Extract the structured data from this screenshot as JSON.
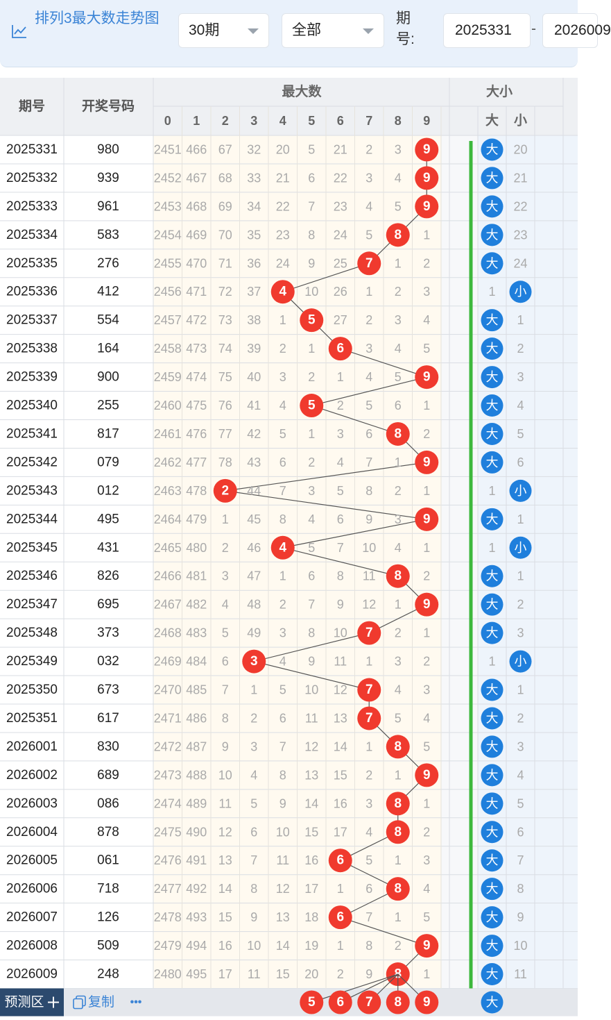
{
  "header": {
    "title": "排列3最大数走势图",
    "period_select": "30期",
    "type_select": "全部",
    "period_label": "期号:",
    "from_period": "2025331",
    "to_period": "2026009"
  },
  "table": {
    "col_period": "期号",
    "col_number": "开奖号码",
    "group_max": "最大数",
    "group_size": "大小",
    "digits": [
      "0",
      "1",
      "2",
      "3",
      "4",
      "5",
      "6",
      "7",
      "8",
      "9"
    ],
    "size_big": "大",
    "size_small": "小",
    "rows": [
      {
        "period": "2025331",
        "number": "980",
        "miss": [
          "2451",
          "466",
          "67",
          "32",
          "20",
          "5",
          "21",
          "2",
          "3",
          "9"
        ],
        "max": 9,
        "size": [
          "大",
          "20"
        ]
      },
      {
        "period": "2025332",
        "number": "939",
        "miss": [
          "2452",
          "467",
          "68",
          "33",
          "21",
          "6",
          "22",
          "3",
          "4",
          "9"
        ],
        "max": 9,
        "size": [
          "大",
          "21"
        ]
      },
      {
        "period": "2025333",
        "number": "961",
        "miss": [
          "2453",
          "468",
          "69",
          "34",
          "22",
          "7",
          "23",
          "4",
          "5",
          "9"
        ],
        "max": 9,
        "size": [
          "大",
          "22"
        ]
      },
      {
        "period": "2025334",
        "number": "583",
        "miss": [
          "2454",
          "469",
          "70",
          "35",
          "23",
          "8",
          "24",
          "5",
          "8",
          "1"
        ],
        "max": 8,
        "size": [
          "大",
          "23"
        ]
      },
      {
        "period": "2025335",
        "number": "276",
        "miss": [
          "2455",
          "470",
          "71",
          "36",
          "24",
          "9",
          "25",
          "7",
          "1",
          "2"
        ],
        "max": 7,
        "size": [
          "大",
          "24"
        ]
      },
      {
        "period": "2025336",
        "number": "412",
        "miss": [
          "2456",
          "471",
          "72",
          "37",
          "4",
          "10",
          "26",
          "1",
          "2",
          "3"
        ],
        "max": 4,
        "size": [
          "1",
          "小"
        ]
      },
      {
        "period": "2025337",
        "number": "554",
        "miss": [
          "2457",
          "472",
          "73",
          "38",
          "1",
          "5",
          "27",
          "2",
          "3",
          "4"
        ],
        "max": 5,
        "size": [
          "大",
          "1"
        ]
      },
      {
        "period": "2025338",
        "number": "164",
        "miss": [
          "2458",
          "473",
          "74",
          "39",
          "2",
          "1",
          "6",
          "3",
          "4",
          "5"
        ],
        "max": 6,
        "size": [
          "大",
          "2"
        ]
      },
      {
        "period": "2025339",
        "number": "900",
        "miss": [
          "2459",
          "474",
          "75",
          "40",
          "3",
          "2",
          "1",
          "4",
          "5",
          "9"
        ],
        "max": 9,
        "size": [
          "大",
          "3"
        ]
      },
      {
        "period": "2025340",
        "number": "255",
        "miss": [
          "2460",
          "475",
          "76",
          "41",
          "4",
          "5",
          "2",
          "5",
          "6",
          "1"
        ],
        "max": 5,
        "size": [
          "大",
          "4"
        ]
      },
      {
        "period": "2025341",
        "number": "817",
        "miss": [
          "2461",
          "476",
          "77",
          "42",
          "5",
          "1",
          "3",
          "6",
          "8",
          "2"
        ],
        "max": 8,
        "size": [
          "大",
          "5"
        ]
      },
      {
        "period": "2025342",
        "number": "079",
        "miss": [
          "2462",
          "477",
          "78",
          "43",
          "6",
          "2",
          "4",
          "7",
          "1",
          "9"
        ],
        "max": 9,
        "size": [
          "大",
          "6"
        ]
      },
      {
        "period": "2025343",
        "number": "012",
        "miss": [
          "2463",
          "478",
          "2",
          "44",
          "7",
          "3",
          "5",
          "8",
          "2",
          "1"
        ],
        "max": 2,
        "size": [
          "1",
          "小"
        ]
      },
      {
        "period": "2025344",
        "number": "495",
        "miss": [
          "2464",
          "479",
          "1",
          "45",
          "8",
          "4",
          "6",
          "9",
          "3",
          "9"
        ],
        "max": 9,
        "size": [
          "大",
          "1"
        ]
      },
      {
        "period": "2025345",
        "number": "431",
        "miss": [
          "2465",
          "480",
          "2",
          "46",
          "4",
          "5",
          "7",
          "10",
          "4",
          "1"
        ],
        "max": 4,
        "size": [
          "1",
          "小"
        ]
      },
      {
        "period": "2025346",
        "number": "826",
        "miss": [
          "2466",
          "481",
          "3",
          "47",
          "1",
          "6",
          "8",
          "11",
          "8",
          "2"
        ],
        "max": 8,
        "size": [
          "大",
          "1"
        ]
      },
      {
        "period": "2025347",
        "number": "695",
        "miss": [
          "2467",
          "482",
          "4",
          "48",
          "2",
          "7",
          "9",
          "12",
          "1",
          "9"
        ],
        "max": 9,
        "size": [
          "大",
          "2"
        ]
      },
      {
        "period": "2025348",
        "number": "373",
        "miss": [
          "2468",
          "483",
          "5",
          "49",
          "3",
          "8",
          "10",
          "7",
          "2",
          "1"
        ],
        "max": 7,
        "size": [
          "大",
          "3"
        ]
      },
      {
        "period": "2025349",
        "number": "032",
        "miss": [
          "2469",
          "484",
          "6",
          "3",
          "4",
          "9",
          "11",
          "1",
          "3",
          "2"
        ],
        "max": 3,
        "size": [
          "1",
          "小"
        ]
      },
      {
        "period": "2025350",
        "number": "673",
        "miss": [
          "2470",
          "485",
          "7",
          "1",
          "5",
          "10",
          "12",
          "7",
          "4",
          "3"
        ],
        "max": 7,
        "size": [
          "大",
          "1"
        ]
      },
      {
        "period": "2025351",
        "number": "617",
        "miss": [
          "2471",
          "486",
          "8",
          "2",
          "6",
          "11",
          "13",
          "7",
          "5",
          "4"
        ],
        "max": 7,
        "size": [
          "大",
          "2"
        ]
      },
      {
        "period": "2026001",
        "number": "830",
        "miss": [
          "2472",
          "487",
          "9",
          "3",
          "7",
          "12",
          "14",
          "1",
          "8",
          "5"
        ],
        "max": 8,
        "size": [
          "大",
          "3"
        ]
      },
      {
        "period": "2026002",
        "number": "689",
        "miss": [
          "2473",
          "488",
          "10",
          "4",
          "8",
          "13",
          "15",
          "2",
          "1",
          "9"
        ],
        "max": 9,
        "size": [
          "大",
          "4"
        ]
      },
      {
        "period": "2026003",
        "number": "086",
        "miss": [
          "2474",
          "489",
          "11",
          "5",
          "9",
          "14",
          "16",
          "3",
          "8",
          "1"
        ],
        "max": 8,
        "size": [
          "大",
          "5"
        ]
      },
      {
        "period": "2026004",
        "number": "878",
        "miss": [
          "2475",
          "490",
          "12",
          "6",
          "10",
          "15",
          "17",
          "4",
          "8",
          "2"
        ],
        "max": 8,
        "size": [
          "大",
          "6"
        ]
      },
      {
        "period": "2026005",
        "number": "061",
        "miss": [
          "2476",
          "491",
          "13",
          "7",
          "11",
          "16",
          "6",
          "5",
          "1",
          "3"
        ],
        "max": 6,
        "size": [
          "大",
          "7"
        ]
      },
      {
        "period": "2026006",
        "number": "718",
        "miss": [
          "2477",
          "492",
          "14",
          "8",
          "12",
          "17",
          "1",
          "6",
          "8",
          "4"
        ],
        "max": 8,
        "size": [
          "大",
          "8"
        ]
      },
      {
        "period": "2026007",
        "number": "126",
        "miss": [
          "2478",
          "493",
          "15",
          "9",
          "13",
          "18",
          "6",
          "7",
          "1",
          "5"
        ],
        "max": 6,
        "size": [
          "大",
          "9"
        ]
      },
      {
        "period": "2026008",
        "number": "509",
        "miss": [
          "2479",
          "494",
          "16",
          "10",
          "14",
          "19",
          "1",
          "8",
          "2",
          "9"
        ],
        "max": 9,
        "size": [
          "大",
          "10"
        ]
      },
      {
        "period": "2026009",
        "number": "248",
        "miss": [
          "2480",
          "495",
          "17",
          "11",
          "15",
          "20",
          "2",
          "9",
          "8",
          "1"
        ],
        "max": 8,
        "size": [
          "大",
          "11"
        ]
      }
    ]
  },
  "footer": {
    "predict_label": "预测区",
    "copy_label": "复制",
    "more_label": "•••",
    "predicted_max": [
      "5",
      "6",
      "7",
      "8",
      "9"
    ],
    "predicted_size": "大"
  },
  "colors": {
    "accent": "#3b84d6",
    "ball_red": "#f03a2e",
    "ball_blue": "#1f7fdc",
    "trend_green": "#3db83d",
    "footer_dark": "#2c4a6e",
    "cell_cream": "#fffaf0"
  }
}
